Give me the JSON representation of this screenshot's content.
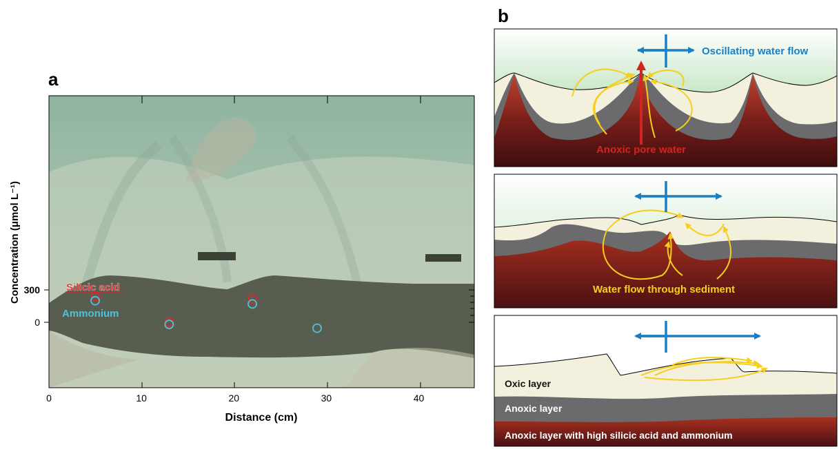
{
  "panel_a": {
    "letter": "a",
    "y_label": "Concentration (μmol L⁻¹)",
    "y_ticks": [
      "300",
      "0"
    ],
    "x_label": "Distance (cm)",
    "x_ticks": [
      "0",
      "10",
      "20",
      "30",
      "40"
    ],
    "series": [
      {
        "name": "Silicic acid",
        "color": "#e0262b"
      },
      {
        "name": "Ammonium",
        "color": "#4ec3d8"
      }
    ],
    "chart_data": {
      "type": "scatter",
      "xlabel": "Distance (cm)",
      "ylabel": "Concentration (μmol L⁻¹)",
      "xlim": [
        0,
        46
      ],
      "y_ticks": [
        0,
        300
      ],
      "series": [
        {
          "name": "Silicic acid",
          "points": [
            [
              5,
              235
            ],
            [
              13,
              0
            ],
            [
              22,
              215
            ],
            [
              29,
              -55
            ]
          ]
        },
        {
          "name": "Ammonium",
          "points": [
            [
              5,
              200
            ],
            [
              13,
              -20
            ],
            [
              22,
              170
            ],
            [
              29,
              -55
            ]
          ]
        }
      ]
    }
  },
  "panel_b": {
    "letter": "b",
    "top": {
      "flow_label": "Oscillating water flow",
      "pore_label": "Anoxic pore water"
    },
    "middle": {
      "flow_label": "Water flow through sediment"
    },
    "bottom": {
      "oxic_label": "Oxic layer",
      "anoxic_label": "Anoxic layer",
      "deep_label": "Anoxic layer with high silicic acid and ammonium"
    },
    "colors": {
      "arrow_blue": "#1b7fc4",
      "flow_yellow": "#f6cf1d",
      "pore_red": "#d5241f",
      "oxic": "#f3f0de",
      "anoxic": "#6b6b6d",
      "deep_red": "#9a2a1f",
      "water_green": "#6fc070"
    }
  }
}
